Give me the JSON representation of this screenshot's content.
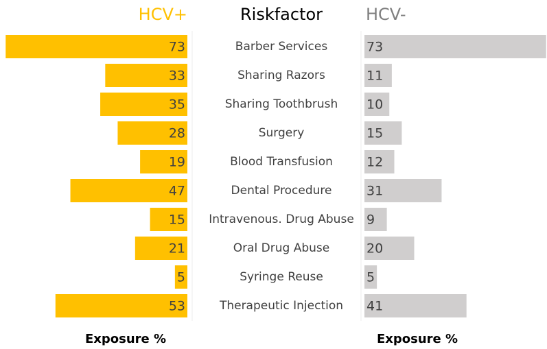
{
  "chart_data": {
    "type": "butterfly",
    "category_title": "Riskfactor",
    "xlabel": "Exposure %",
    "categories": [
      "Barber Services",
      "Sharing Razors",
      "Sharing Toothbrush",
      "Surgery",
      "Blood Transfusion",
      "Dental Procedure",
      "Intravenous. Drug Abuse",
      "Oral Drug Abuse",
      "Syringe Reuse",
      "Therapeutic Injection"
    ],
    "series": [
      {
        "name": "HCV+",
        "color": "#FFC000",
        "values": [
          73,
          33,
          35,
          28,
          19,
          47,
          15,
          21,
          5,
          53
        ]
      },
      {
        "name": "HCV-",
        "color": "#D0CECE",
        "values": [
          73,
          11,
          10,
          15,
          12,
          31,
          9,
          20,
          5,
          41
        ]
      }
    ],
    "xlim": [
      0,
      75
    ]
  }
}
